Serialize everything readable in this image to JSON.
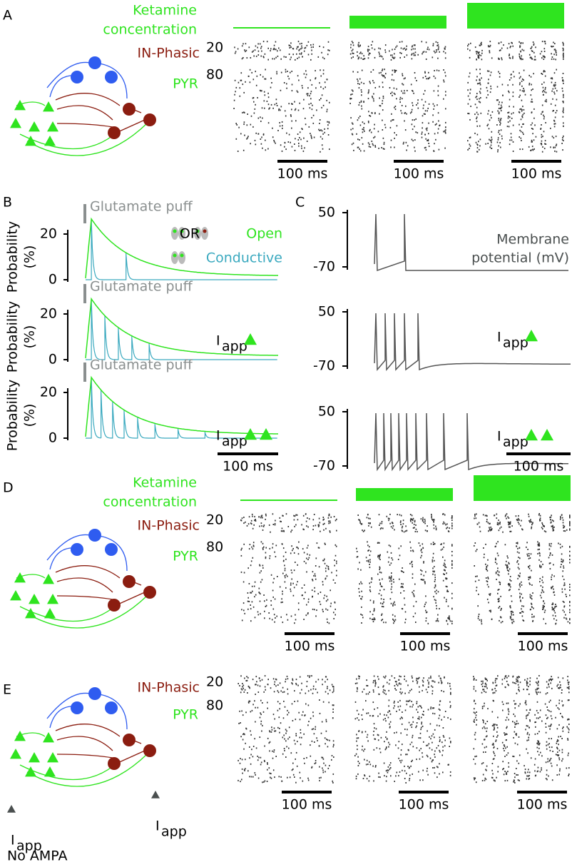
{
  "figure": {
    "panel_a": {
      "label": "A",
      "ketamine": [
        "Ketamine",
        "concentration"
      ],
      "in_label": "IN-Phasic",
      "pyr_label": "PYR",
      "in_count": 20,
      "pyr_count": 80,
      "scale_label": "100 ms"
    },
    "panel_b": {
      "label": "B",
      "puff_label": "Glutamate puff",
      "y_label": [
        "Probability",
        "(%)"
      ],
      "yticks": [
        0,
        20
      ],
      "open_label": "Open",
      "or_label": "OR",
      "conductive_label": "Conductive",
      "current": {
        "main": "I",
        "sub": "app"
      },
      "scale_label": "100 ms"
    },
    "panel_c": {
      "label": "C",
      "yticks": [
        -70,
        50
      ],
      "y_label": [
        "Membrane",
        "potential (mV)"
      ],
      "current": {
        "main": "I",
        "sub": "app"
      },
      "scale_label": "100 ms"
    },
    "panel_d": {
      "label": "D",
      "ketamine": [
        "Ketamine",
        "concentration"
      ],
      "in_label": "IN-Phasic",
      "pyr_label": "PYR",
      "in_count": 20,
      "pyr_count": 80,
      "scale_label": "100 ms"
    },
    "panel_e": {
      "label": "E",
      "in_label": "IN-Phasic",
      "pyr_label": "PYR",
      "in_count": 20,
      "pyr_count": 80,
      "scale_label": "100 ms",
      "current": {
        "main": "I",
        "sub": "app"
      },
      "condition": "No AMPA"
    }
  }
}
